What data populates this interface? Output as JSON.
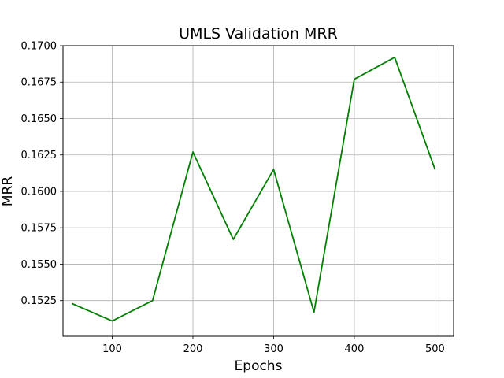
{
  "chart_data": {
    "type": "line",
    "title": "UMLS Validation MRR",
    "xlabel": "Epochs",
    "ylabel": "MRR",
    "grid": true,
    "xlim": [
      39,
      523
    ],
    "ylim": [
      0.15005,
      0.17
    ],
    "x_ticks": [
      100,
      200,
      300,
      400,
      500
    ],
    "y_ticks": [
      0.1525,
      0.155,
      0.1575,
      0.16,
      0.1625,
      0.165,
      0.1675,
      0.17
    ],
    "y_tick_labels": [
      "0.1525",
      "0.1550",
      "0.1575",
      "0.1600",
      "0.1625",
      "0.1650",
      "0.1675",
      "0.1700"
    ],
    "series": [
      {
        "color": "#008000",
        "x": [
          50,
          100,
          150,
          200,
          250,
          300,
          350,
          400,
          450,
          500
        ],
        "y": [
          0.1523,
          0.1511,
          0.1525,
          0.1627,
          0.1567,
          0.1615,
          0.1517,
          0.1677,
          0.1692,
          0.1615
        ]
      }
    ]
  }
}
